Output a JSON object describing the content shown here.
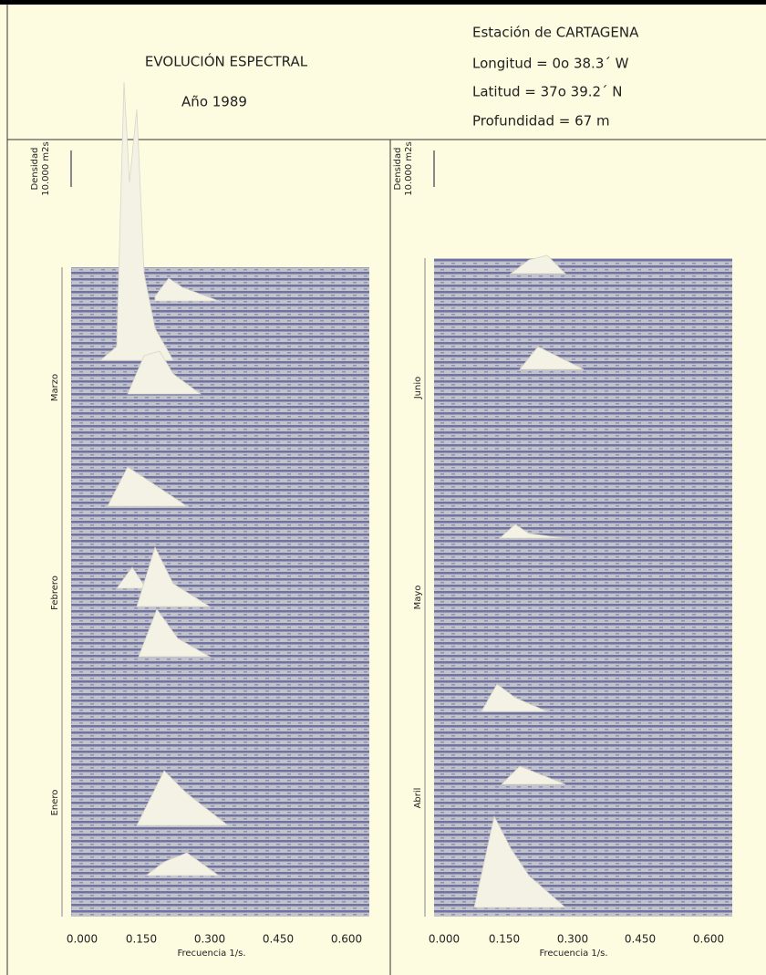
{
  "header": {
    "title": "EVOLUCIÓN ESPECTRAL",
    "year": "Año 1989",
    "station": "Estación de CARTAGENA",
    "longitude": "Longitud = 0o  38.3´  W",
    "latitude": "Latitud = 37o  39.2´  N",
    "depth": "Profundidad = 67 m"
  },
  "panels": [
    {
      "scale_label": "Densidad",
      "scale_value": "10.000 m2s",
      "months": [
        "Marzo",
        "Febrero",
        "Enero"
      ],
      "x_ticks": [
        "0.000",
        "0.150",
        "0.300",
        "0.450",
        "0.600"
      ],
      "x_label": "Frecuencia 1/s."
    },
    {
      "scale_label": "Densidad",
      "scale_value": "10.000 m2s",
      "months": [
        "Junio",
        "Mayo",
        "Abril"
      ],
      "x_ticks": [
        "0.000",
        "0.150",
        "0.300",
        "0.450",
        "0.600"
      ],
      "x_label": "Frecuencia 1/s."
    }
  ]
}
